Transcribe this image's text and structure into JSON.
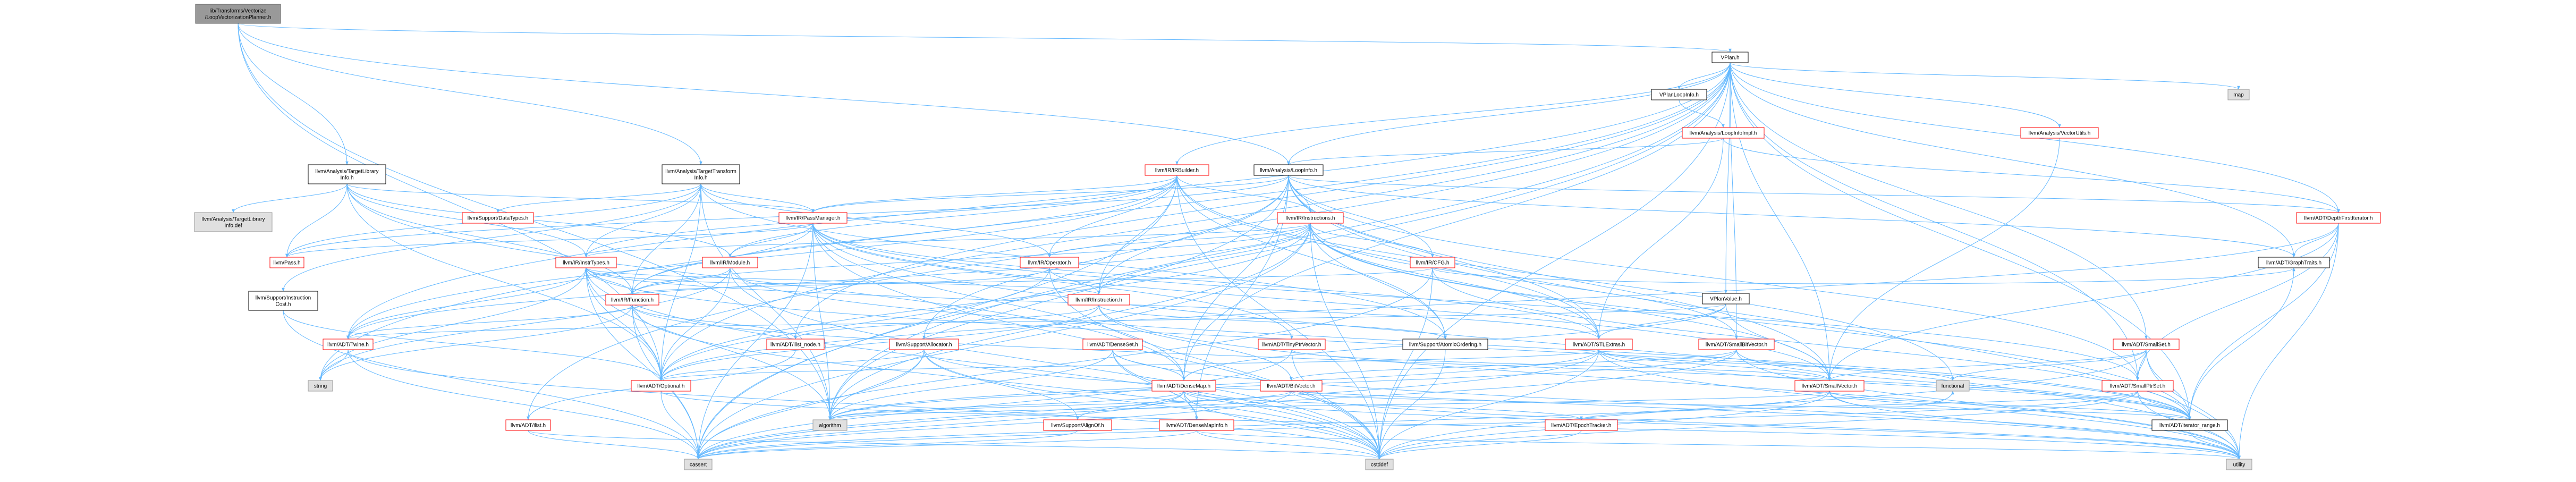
{
  "title": "llvm/Transforms/Vectorize/LoopVectorizationPlanner.h include dependency graph",
  "colors": {
    "edge": "#63b8ff",
    "red_border": "#ff0000",
    "gray_border": "#999999",
    "root_fill": "#999999",
    "gray_fill": "#e0e0e0",
    "node_fill": "#ffffff"
  },
  "nodes": [
    {
      "id": "root",
      "lines": [
        "lib/Transforms/Vectorize",
        "/LoopVectorizationPlanner.h"
      ],
      "style": "root"
    },
    {
      "id": "vplan",
      "lines": [
        "VPlan.h"
      ],
      "style": "black"
    },
    {
      "id": "vplanloopinfo",
      "lines": [
        "VPlanLoopInfo.h"
      ],
      "style": "black"
    },
    {
      "id": "genloopinfoimpl",
      "lines": [
        "llvm/Analysis/LoopInfoImpl.h"
      ],
      "style": "red"
    },
    {
      "id": "vectorutils",
      "lines": [
        "llvm/Analysis/VectorUtils.h"
      ],
      "style": "red"
    },
    {
      "id": "map",
      "lines": [
        "map"
      ],
      "style": "gray"
    },
    {
      "id": "tti",
      "lines": [
        "llvm/Analysis/TargetTransform",
        "Info.h"
      ],
      "style": "black"
    },
    {
      "id": "tli",
      "lines": [
        "llvm/Analysis/TargetLibrary",
        "Info.h"
      ],
      "style": "black"
    },
    {
      "id": "tlidef",
      "lines": [
        "llvm/Analysis/TargetLibrary",
        "Info.def"
      ],
      "style": "gray"
    },
    {
      "id": "loopinfo",
      "lines": [
        "llvm/Analysis/LoopInfo.h"
      ],
      "style": "black"
    },
    {
      "id": "irbuilder",
      "lines": [
        "llvm/IR/IRBuilder.h"
      ],
      "style": "red"
    },
    {
      "id": "datatypes",
      "lines": [
        "llvm/Support/DataTypes.h"
      ],
      "style": "red"
    },
    {
      "id": "passmanager",
      "lines": [
        "llvm/IR/PassManager.h"
      ],
      "style": "red"
    },
    {
      "id": "instructions",
      "lines": [
        "llvm/IR/Instructions.h"
      ],
      "style": "red"
    },
    {
      "id": "dfi",
      "lines": [
        "llvm/ADT/DepthFirstIterator.h"
      ],
      "style": "red"
    },
    {
      "id": "pass",
      "lines": [
        "llvm/Pass.h"
      ],
      "style": "red"
    },
    {
      "id": "insttypes",
      "lines": [
        "llvm/IR/InstrTypes.h"
      ],
      "style": "red"
    },
    {
      "id": "module",
      "lines": [
        "llvm/IR/Module.h"
      ],
      "style": "red"
    },
    {
      "id": "operator",
      "lines": [
        "llvm/IR/Operator.h"
      ],
      "style": "red"
    },
    {
      "id": "cfg",
      "lines": [
        "llvm/IR/CFG.h"
      ],
      "style": "red"
    },
    {
      "id": "graphtraits",
      "lines": [
        "llvm/ADT/GraphTraits.h"
      ],
      "style": "black"
    },
    {
      "id": "vpvalue",
      "lines": [
        "VPlanValue.h"
      ],
      "style": "black"
    },
    {
      "id": "instcost",
      "lines": [
        "llvm/Support/Instruction",
        "Cost.h"
      ],
      "style": "black"
    },
    {
      "id": "function",
      "lines": [
        "llvm/IR/Function.h"
      ],
      "style": "red"
    },
    {
      "id": "instruction",
      "lines": [
        "llvm/IR/Instruction.h"
      ],
      "style": "red"
    },
    {
      "id": "twine",
      "lines": [
        "llvm/ADT/Twine.h"
      ],
      "style": "red"
    },
    {
      "id": "ilistnode",
      "lines": [
        "llvm/ADT/ilist_node.h"
      ],
      "style": "red"
    },
    {
      "id": "allocator",
      "lines": [
        "llvm/Support/Allocator.h"
      ],
      "style": "red"
    },
    {
      "id": "denseset",
      "lines": [
        "llvm/ADT/DenseSet.h"
      ],
      "style": "red"
    },
    {
      "id": "tinyptr",
      "lines": [
        "llvm/ADT/TinyPtrVector.h"
      ],
      "style": "red"
    },
    {
      "id": "atomic",
      "lines": [
        "llvm/Support/AtomicOrdering.h"
      ],
      "style": "black"
    },
    {
      "id": "stlextras",
      "lines": [
        "llvm/ADT/STLExtras.h"
      ],
      "style": "red"
    },
    {
      "id": "smallbitvec",
      "lines": [
        "llvm/ADT/SmallBitVector.h"
      ],
      "style": "red"
    },
    {
      "id": "smallset",
      "lines": [
        "llvm/ADT/SmallSet.h"
      ],
      "style": "red"
    },
    {
      "id": "string",
      "lines": [
        "string"
      ],
      "style": "gray"
    },
    {
      "id": "optional",
      "lines": [
        "llvm/ADT/Optional.h"
      ],
      "style": "red"
    },
    {
      "id": "densemap",
      "lines": [
        "llvm/ADT/DenseMap.h"
      ],
      "style": "red"
    },
    {
      "id": "bitvector",
      "lines": [
        "llvm/ADT/BitVector.h"
      ],
      "style": "red"
    },
    {
      "id": "functional",
      "lines": [
        "functional"
      ],
      "style": "gray"
    },
    {
      "id": "smallvector",
      "lines": [
        "llvm/ADT/SmallVector.h"
      ],
      "style": "red"
    },
    {
      "id": "smallptrset",
      "lines": [
        "llvm/ADT/SmallPtrSet.h"
      ],
      "style": "red"
    },
    {
      "id": "algorithm",
      "lines": [
        "algorithm"
      ],
      "style": "gray"
    },
    {
      "id": "ilist",
      "lines": [
        "llvm/ADT/ilist.h"
      ],
      "style": "red"
    },
    {
      "id": "alignof",
      "lines": [
        "llvm/Support/AlignOf.h"
      ],
      "style": "red"
    },
    {
      "id": "densemapinfo",
      "lines": [
        "llvm/ADT/DenseMapInfo.h"
      ],
      "style": "red"
    },
    {
      "id": "epoch",
      "lines": [
        "llvm/ADT/EpochTracker.h"
      ],
      "style": "red"
    },
    {
      "id": "iterrange",
      "lines": [
        "llvm/ADT/iterator_range.h"
      ],
      "style": "black"
    },
    {
      "id": "cassert",
      "lines": [
        "cassert"
      ],
      "style": "gray"
    },
    {
      "id": "cstddef",
      "lines": [
        "cstddef"
      ],
      "style": "gray"
    },
    {
      "id": "utility",
      "lines": [
        "utility"
      ],
      "style": "gray"
    }
  ]
}
